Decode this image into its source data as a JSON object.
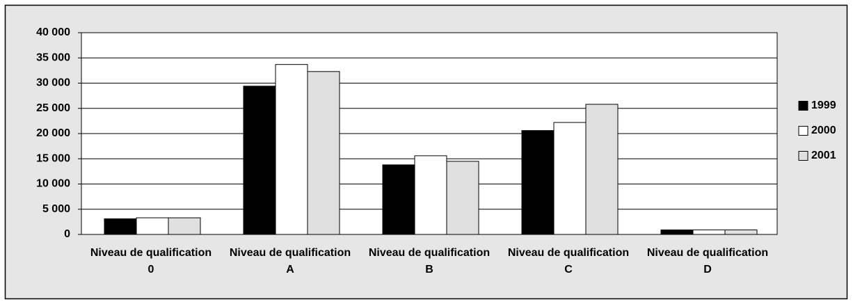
{
  "chart_data": {
    "type": "bar",
    "categories": [
      "Niveau de qualification 0",
      "Niveau de qualification A",
      "Niveau de qualification B",
      "Niveau de qualification C",
      "Niveau de qualification D"
    ],
    "series": [
      {
        "name": "1999",
        "color": "#000000",
        "values": [
          3100,
          29400,
          13800,
          20600,
          900
        ]
      },
      {
        "name": "2000",
        "color": "#ffffff",
        "values": [
          3300,
          33700,
          15600,
          22200,
          900
        ]
      },
      {
        "name": "2001",
        "color": "#e0e0e0",
        "values": [
          3300,
          32300,
          14500,
          25800,
          900
        ]
      }
    ],
    "ylim": [
      0,
      40000
    ],
    "yticks": [
      0,
      {
        "value": 5000,
        "label": "5 000"
      },
      {
        "value": 10000,
        "label": "10 000"
      },
      {
        "value": 15000,
        "label": "15 000"
      },
      {
        "value": 20000,
        "label": "20 000"
      },
      {
        "value": 25000,
        "label": "25 000"
      },
      {
        "value": 30000,
        "label": "30 000"
      },
      {
        "value": 35000,
        "label": "35 000"
      },
      {
        "value": 40000,
        "label": "40 000"
      }
    ],
    "grid": true,
    "legend": "right"
  }
}
